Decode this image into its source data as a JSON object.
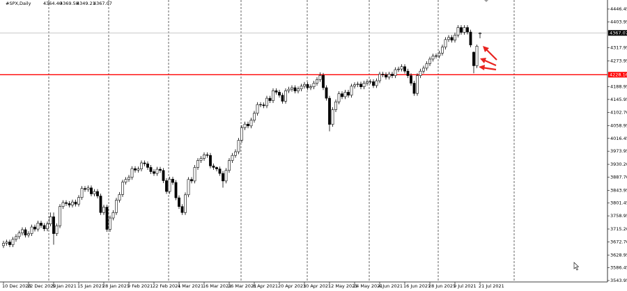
{
  "chart_data": {
    "type": "candlestick",
    "title": "#SPX,Daily",
    "header_ohlc": [
      {
        "value": 4364.4,
        "label": "4364.40"
      },
      4369.58,
      4349.21,
      4367.07
    ],
    "categories": [
      "10 Dec 2020",
      null,
      null,
      null,
      null,
      null,
      null,
      null,
      "22 Dec 2020",
      null,
      null,
      null,
      null,
      null,
      null,
      null,
      "5 Jan 2021",
      null,
      null,
      null,
      null,
      null,
      null,
      null,
      "15 Jan 2021",
      null,
      null,
      null,
      null,
      null,
      null,
      null,
      "28 Jan 2021",
      null,
      null,
      null,
      null,
      null,
      null,
      null,
      "9 Feb 2021",
      null,
      null,
      null,
      null,
      null,
      null,
      null,
      "22 Feb 2021",
      null,
      null,
      null,
      null,
      null,
      null,
      null,
      "4 Mar 2021",
      null,
      null,
      null,
      null,
      null,
      null,
      null,
      "16 Mar 2021",
      null,
      null,
      null,
      null,
      null,
      null,
      null,
      "26 Mar 2021",
      null,
      null,
      null,
      null,
      null,
      null,
      null,
      "8 Apr 2021",
      null,
      null,
      null,
      null,
      null,
      null,
      null,
      "20 Apr 2021",
      null,
      null,
      null,
      null,
      null,
      null,
      null,
      "30 Apr 2021",
      null,
      null,
      null,
      null,
      null,
      null,
      null,
      "12 May 2021",
      null,
      null,
      null,
      null,
      null,
      null,
      null,
      "24 May 2021",
      null,
      null,
      null,
      null,
      null,
      null,
      null,
      "4 Jun 2021",
      null,
      null,
      null,
      null,
      null,
      null,
      null,
      "16 Jun 2021",
      null,
      null,
      null,
      null,
      null,
      null,
      null,
      "28 Jun 2021",
      null,
      null,
      null,
      null,
      null,
      null,
      null,
      "9 Jul 2021",
      null,
      null,
      null,
      null,
      null,
      null,
      null,
      "21 Jul 2021"
    ],
    "open": [
      3660,
      3668,
      3672,
      3663,
      3681,
      3690,
      3702,
      3713,
      3695,
      3700,
      3722,
      3715,
      3735,
      3727,
      3716,
      3732,
      3756,
      3700,
      3726,
      3790,
      3803,
      3800,
      3795,
      3805,
      3798,
      3820,
      3850,
      3847,
      3852,
      3832,
      3840,
      3825,
      3770,
      3788,
      3714,
      3752,
      3770,
      3811,
      3830,
      3871,
      3880,
      3887,
      3916,
      3911,
      3915,
      3935,
      3932,
      3920,
      3906,
      3900,
      3914,
      3910,
      3876,
      3840,
      3881,
      3870,
      3819,
      3790,
      3770,
      3829,
      3880,
      3875,
      3920,
      3943,
      3950,
      3962,
      3960,
      3925,
      3920,
      3915,
      3900,
      3875,
      3910,
      3943,
      3960,
      3972,
      4010,
      4052,
      4064,
      4058,
      4077,
      4100,
      4129,
      4128,
      4125,
      4150,
      4142,
      4175,
      4170,
      4160,
      4140,
      4175,
      4180,
      4185,
      4174,
      4181,
      4190,
      4196,
      4185,
      4188,
      4200,
      4212,
      4226,
      4185,
      4150,
      4063,
      4112,
      4138,
      4165,
      4155,
      4170,
      4160,
      4190,
      4195,
      4197,
      4188,
      4200,
      4205,
      4205,
      4192,
      4208,
      4230,
      4228,
      4220,
      4230,
      4225,
      4245,
      4247,
      4255,
      4240,
      4225,
      4200,
      4166,
      4225,
      4240,
      4250,
      4265,
      4280,
      4290,
      4291,
      4300,
      4320,
      4345,
      4352,
      4343,
      4360,
      4385,
      4369,
      4385,
      4370,
      4303,
      4258,
      4364.4
    ],
    "high": [
      3676,
      3680,
      3680,
      3689,
      3698,
      3710,
      3721,
      3721,
      3708,
      3730,
      3730,
      3743,
      3743,
      3735,
      3740,
      3770,
      3770,
      3734,
      3798,
      3811,
      3811,
      3808,
      3813,
      3813,
      3828,
      3858,
      3858,
      3860,
      3860,
      3848,
      3848,
      3833,
      3796,
      3796,
      3760,
      3778,
      3819,
      3838,
      3879,
      3888,
      3895,
      3924,
      3924,
      3923,
      3943,
      3943,
      3940,
      3928,
      3914,
      3922,
      3922,
      3918,
      3884,
      3889,
      3889,
      3878,
      3827,
      3798,
      3837,
      3888,
      3888,
      3928,
      3951,
      3958,
      3970,
      3970,
      3968,
      3933,
      3923,
      3923,
      3908,
      3918,
      3951,
      3968,
      3980,
      4018,
      4060,
      4072,
      4072,
      4085,
      4108,
      4137,
      4137,
      4136,
      4158,
      4158,
      4183,
      4183,
      4178,
      4168,
      4183,
      4188,
      4193,
      4193,
      4189,
      4198,
      4204,
      4204,
      4196,
      4208,
      4220,
      4236,
      4234,
      4193,
      4158,
      4120,
      4146,
      4173,
      4173,
      4178,
      4178,
      4198,
      4203,
      4205,
      4205,
      4208,
      4213,
      4213,
      4213,
      4216,
      4238,
      4238,
      4236,
      4238,
      4238,
      4253,
      4255,
      4263,
      4263,
      4248,
      4233,
      4208,
      4233,
      4248,
      4258,
      4273,
      4288,
      4298,
      4299,
      4308,
      4328,
      4353,
      4360,
      4360,
      4368,
      4393,
      4393,
      4393,
      4393,
      4378,
      4305,
      4328,
      4369.58
    ],
    "low": [
      3652,
      3660,
      3655,
      3655,
      3673,
      3682,
      3694,
      3687,
      3687,
      3692,
      3707,
      3707,
      3719,
      3708,
      3708,
      3724,
      3663,
      3692,
      3718,
      3782,
      3792,
      3787,
      3787,
      3790,
      3790,
      3812,
      3839,
      3839,
      3824,
      3824,
      3817,
      3762,
      3762,
      3706,
      3706,
      3744,
      3762,
      3803,
      3822,
      3863,
      3872,
      3879,
      3903,
      3903,
      3907,
      3924,
      3912,
      3898,
      3892,
      3892,
      3902,
      3868,
      3832,
      3832,
      3862,
      3811,
      3782,
      3762,
      3762,
      3821,
      3867,
      3867,
      3912,
      3935,
      3942,
      3952,
      3917,
      3912,
      3907,
      3892,
      3853,
      3867,
      3902,
      3935,
      3952,
      3964,
      4002,
      4044,
      4050,
      4050,
      4069,
      4092,
      4120,
      4117,
      4117,
      4134,
      4134,
      4162,
      4152,
      4132,
      4132,
      4167,
      4172,
      4166,
      4166,
      4173,
      4182,
      4177,
      4177,
      4180,
      4192,
      4204,
      4177,
      4142,
      4040,
      4055,
      4104,
      4130,
      4147,
      4147,
      4152,
      4152,
      4182,
      4187,
      4180,
      4180,
      4192,
      4197,
      4184,
      4184,
      4200,
      4220,
      4212,
      4212,
      4217,
      4217,
      4237,
      4239,
      4232,
      4217,
      4192,
      4158,
      4158,
      4217,
      4232,
      4242,
      4257,
      4272,
      4282,
      4283,
      4292,
      4312,
      4337,
      4335,
      4335,
      4352,
      4361,
      4361,
      4362,
      4319,
      4233,
      4250,
      4349.21
    ],
    "close": [
      3668,
      3672,
      3663,
      3681,
      3690,
      3702,
      3713,
      3695,
      3700,
      3722,
      3715,
      3735,
      3727,
      3716,
      3732,
      3756,
      3700,
      3726,
      3790,
      3803,
      3800,
      3795,
      3805,
      3798,
      3820,
      3850,
      3847,
      3852,
      3832,
      3840,
      3825,
      3770,
      3788,
      3714,
      3752,
      3770,
      3811,
      3830,
      3871,
      3880,
      3887,
      3916,
      3911,
      3915,
      3935,
      3932,
      3920,
      3906,
      3900,
      3914,
      3910,
      3876,
      3840,
      3881,
      3870,
      3819,
      3790,
      3770,
      3829,
      3880,
      3875,
      3920,
      3943,
      3950,
      3962,
      3960,
      3925,
      3920,
      3915,
      3900,
      3875,
      3910,
      3943,
      3960,
      3972,
      4010,
      4052,
      4064,
      4058,
      4077,
      4100,
      4129,
      4128,
      4125,
      4150,
      4142,
      4175,
      4170,
      4160,
      4140,
      4175,
      4180,
      4185,
      4174,
      4181,
      4190,
      4196,
      4185,
      4188,
      4200,
      4212,
      4226,
      4185,
      4150,
      4063,
      4112,
      4138,
      4165,
      4155,
      4170,
      4160,
      4190,
      4195,
      4197,
      4188,
      4200,
      4205,
      4205,
      4192,
      4208,
      4230,
      4228,
      4220,
      4230,
      4225,
      4245,
      4247,
      4255,
      4240,
      4225,
      4200,
      4166,
      4225,
      4240,
      4250,
      4265,
      4280,
      4290,
      4291,
      4300,
      4320,
      4345,
      4352,
      4343,
      4360,
      4385,
      4369,
      4385,
      4370,
      4327,
      4258,
      4323,
      4367.07
    ],
    "up_color": "#ffffff",
    "down_color": "#000000",
    "edge_color": "#000000",
    "price_line": 4367.07,
    "level_line": 4228.16,
    "level_color": "#ff0000",
    "ylim": [
      3539.3,
      4476.5
    ],
    "yticks": [
      4446.45,
      4403.95,
      4317.95,
      4273.95,
      4188.95,
      4145.95,
      {
        "value": 4102.7,
        "label": "4102.70"
      },
      4058.95,
      4016.45,
      3973.95,
      {
        "value": 3930.2,
        "label": "3930.20"
      },
      {
        "value": 3887.7,
        "label": "3887.70"
      },
      3843.95,
      3801.45,
      3758.95,
      {
        "value": 3715.2,
        "label": "3715.20"
      },
      {
        "value": 3672.7,
        "label": "3672.70"
      },
      3628.95,
      3586.45,
      3543.95
    ]
  }
}
